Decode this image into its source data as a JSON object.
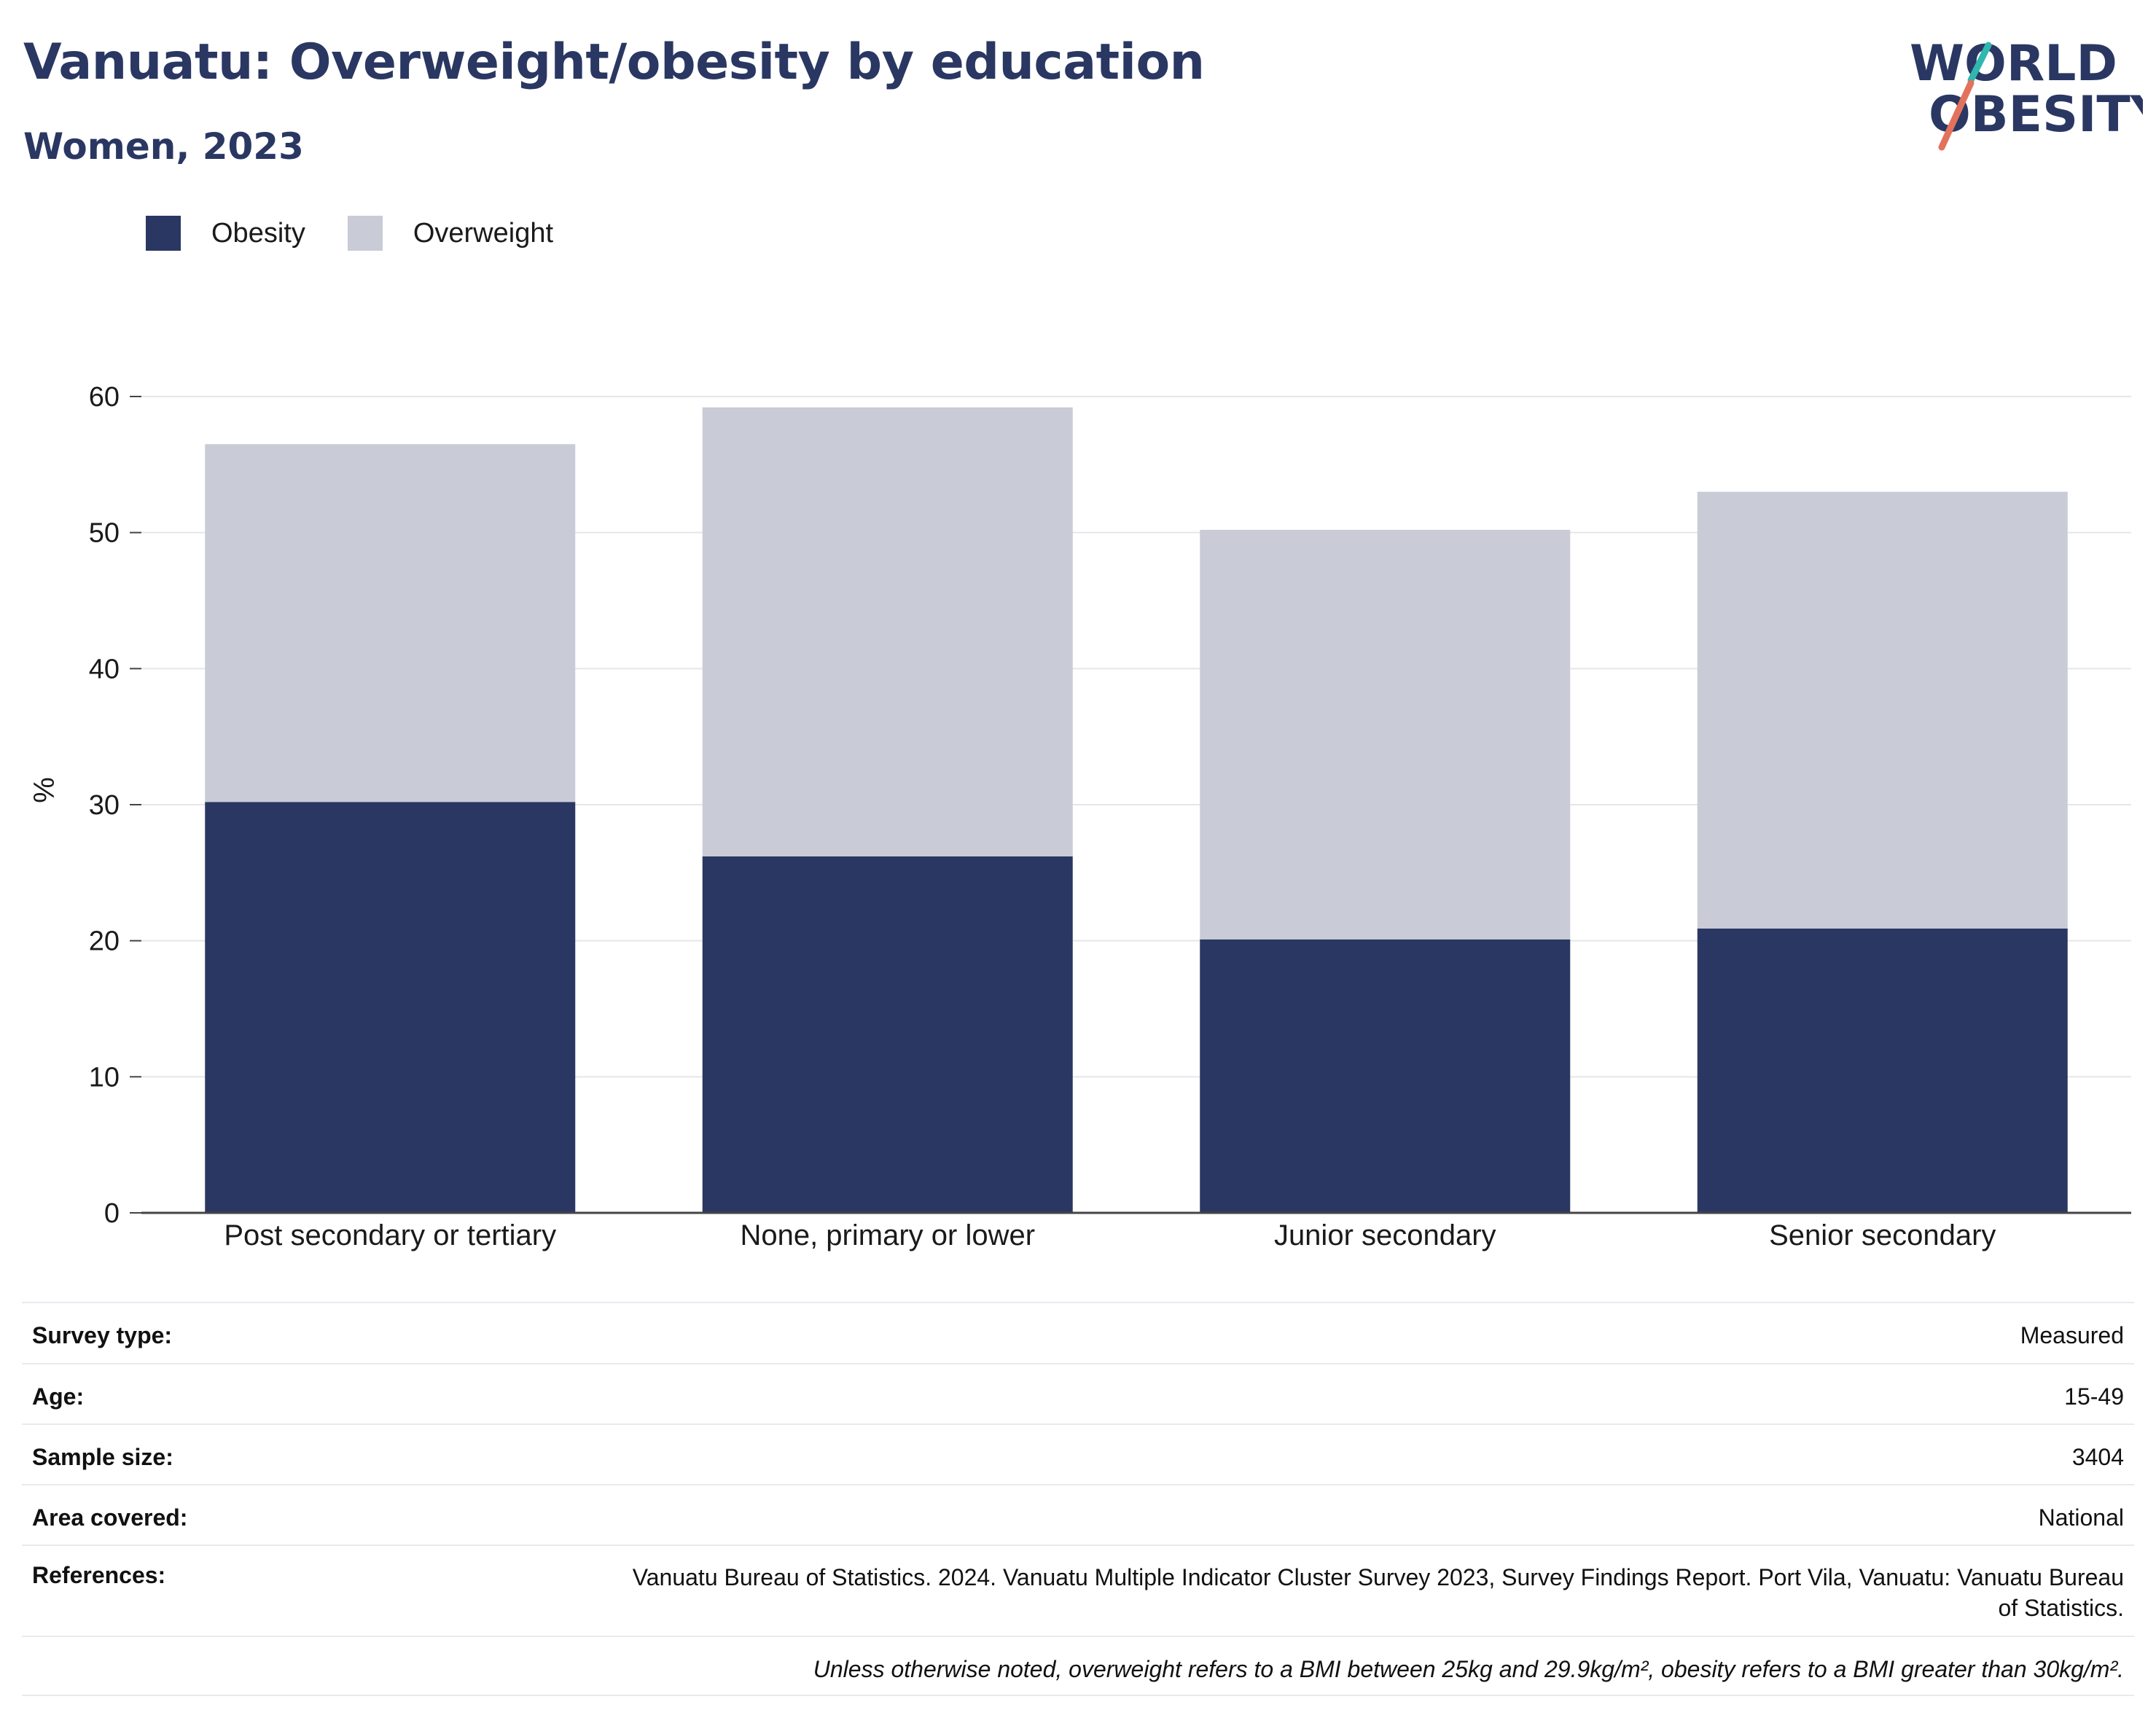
{
  "header": {
    "title": "Vanuatu: Overweight/obesity by education",
    "subtitle": "Women, 2023",
    "logo_line1": "WORLD",
    "logo_line2": "OBESITY"
  },
  "legend": [
    {
      "label": "Obesity",
      "color": "#2a3762"
    },
    {
      "label": "Overweight",
      "color": "#c9cbd7"
    }
  ],
  "chart_data": {
    "type": "bar",
    "stacked": true,
    "categories": [
      "Post secondary or tertiary",
      "None, primary or lower",
      "Junior secondary",
      "Senior secondary"
    ],
    "series": [
      {
        "name": "Obesity",
        "values": [
          30.2,
          26.2,
          20.1,
          20.9
        ],
        "color": "#2a3762"
      },
      {
        "name": "Overweight",
        "values": [
          26.3,
          33.0,
          30.1,
          32.1
        ],
        "color": "#c9cbd7"
      }
    ],
    "ylabel": "%",
    "ylim": [
      0,
      60
    ],
    "yticks": [
      0,
      10,
      20,
      30,
      40,
      50,
      60
    ],
    "grid": true,
    "legend_position": "top-left"
  },
  "meta": {
    "survey_type_label": "Survey type:",
    "survey_type_value": "Measured",
    "age_label": "Age:",
    "age_value": "15-49",
    "sample_size_label": "Sample size:",
    "sample_size_value": "3404",
    "area_label": "Area covered:",
    "area_value": "National",
    "references_label": "References:",
    "references_value": "Vanuatu Bureau of Statistics. 2024. Vanuatu Multiple Indicator Cluster Survey 2023, Survey Findings Report. Port Vila, Vanuatu: Vanuatu Bureau of Statistics.",
    "note": "Unless otherwise noted, overweight refers to a BMI between 25kg and 29.9kg/m², obesity refers to a BMI greater than 30kg/m²."
  }
}
